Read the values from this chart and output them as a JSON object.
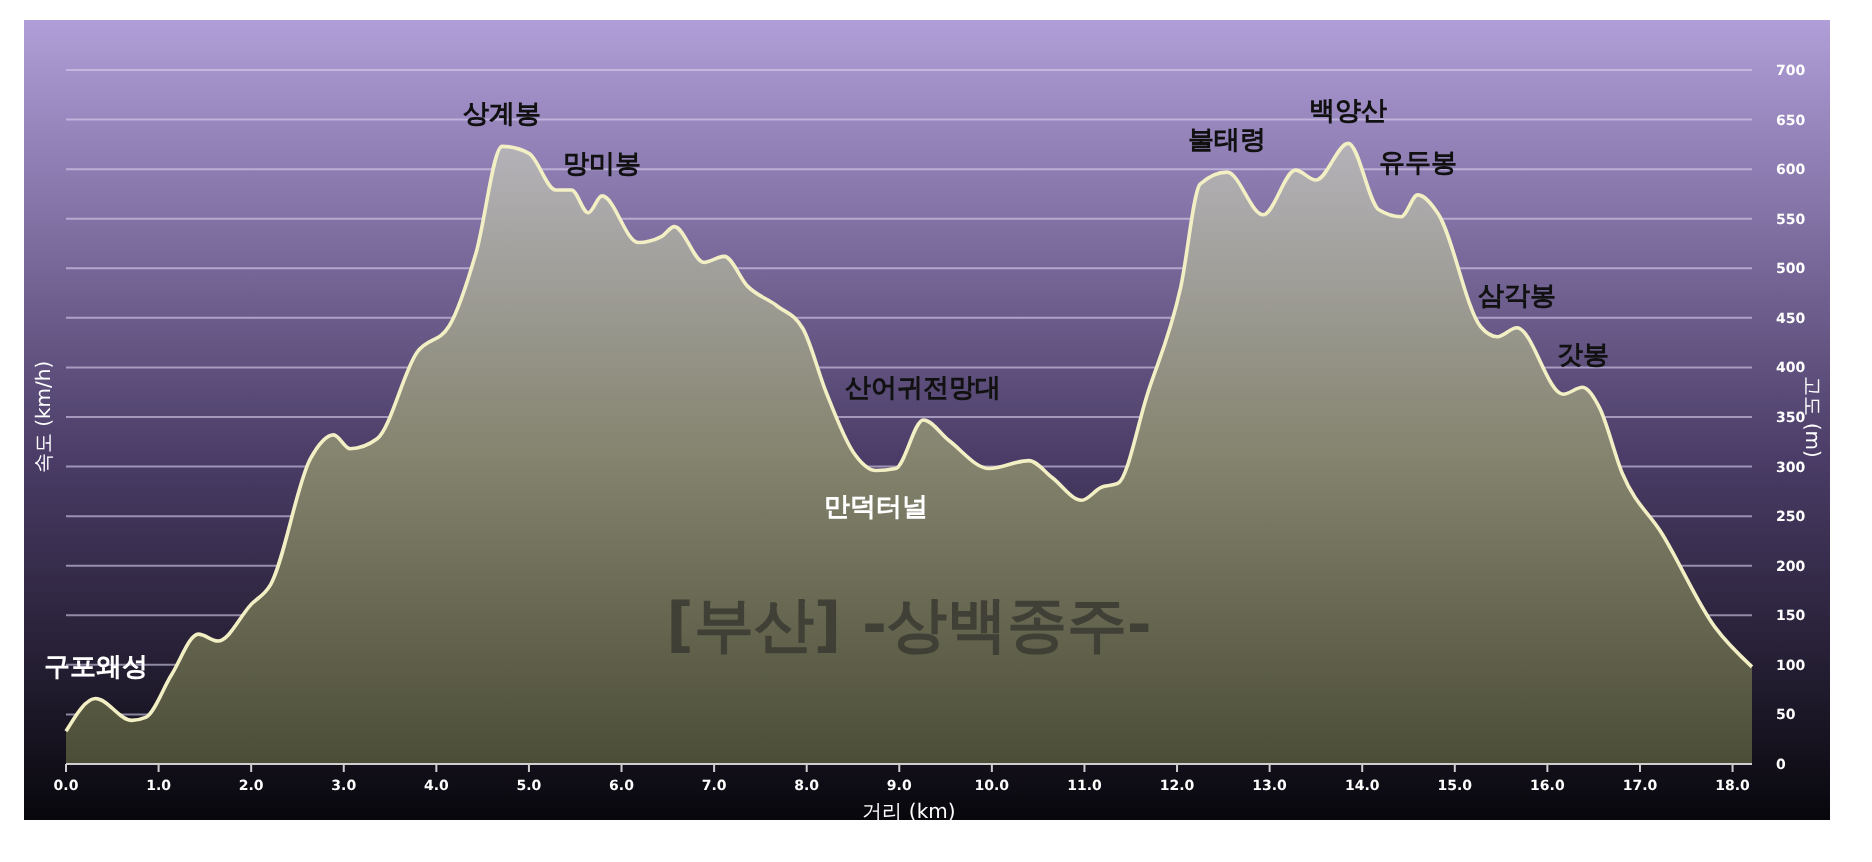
{
  "chart_data": {
    "type": "area",
    "title": "[부산] -상백종주-",
    "xlabel": "거리 (km)",
    "ylabel": "고도 (m)",
    "x": [
      0,
      0.32,
      0.71,
      0.86,
      1.14,
      1.43,
      1.64,
      2.0,
      2.21,
      2.64,
      2.89,
      3.07,
      3.36,
      3.79,
      4.14,
      4.43,
      4.71,
      5.0,
      5.29,
      5.46,
      5.64,
      5.79,
      6.18,
      6.43,
      6.57,
      6.89,
      7.11,
      7.36,
      7.68,
      7.96,
      8.21,
      8.5,
      8.75,
      8.96,
      9.26,
      9.54,
      9.97,
      10.4,
      10.65,
      10.97,
      11.18,
      11.36,
      11.68,
      12.04,
      12.25,
      12.54,
      12.93,
      13.28,
      13.5,
      13.85,
      14.18,
      14.42,
      14.6,
      14.82,
      15.28,
      15.46,
      15.67,
      16.17,
      16.38,
      16.56,
      16.81,
      17.24,
      17.81,
      18.21
    ],
    "series": [
      {
        "color": "#f3efc4",
        "values": [
          33,
          66,
          44,
          47,
          90,
          131,
          124,
          161,
          181,
          308,
          332,
          318,
          328,
          415,
          442,
          516,
          623,
          616,
          579,
          579,
          556,
          573,
          526,
          532,
          542,
          506,
          512,
          482,
          462,
          439,
          375,
          315,
          296,
          298,
          347,
          326,
          298,
          306,
          289,
          266,
          279,
          283,
          373,
          481,
          585,
          597,
          554,
          599,
          589,
          626,
          559,
          552,
          574,
          555,
          441,
          431,
          440,
          373,
          380,
          360,
          293,
          232,
          138,
          98
        ]
      }
    ],
    "xlim": [
      0,
      18.21
    ],
    "xticks": [
      {
        "value": 0,
        "label": "0.0"
      },
      {
        "value": 1,
        "label": "1.0"
      },
      {
        "value": 2,
        "label": "2.0"
      },
      {
        "value": 3,
        "label": "3.0"
      },
      {
        "value": 4,
        "label": "4.0"
      },
      {
        "value": 5,
        "label": "5.0"
      },
      {
        "value": 6,
        "label": "6.0"
      },
      {
        "value": 7,
        "label": "7.0"
      },
      {
        "value": 8,
        "label": "8.0"
      },
      {
        "value": 9,
        "label": "9.0"
      },
      {
        "value": 10,
        "label": "10.0"
      },
      {
        "value": 11,
        "label": "11.0"
      },
      {
        "value": 12,
        "label": "12.0"
      },
      {
        "value": 13,
        "label": "13.0"
      },
      {
        "value": 14,
        "label": "14.0"
      },
      {
        "value": 15,
        "label": "15.0"
      },
      {
        "value": 16,
        "label": "16.0"
      },
      {
        "value": 17,
        "label": "17.0"
      },
      {
        "value": 18,
        "label": "18.0"
      }
    ],
    "ylim": [
      0,
      700
    ],
    "yticks": [
      0,
      50,
      100,
      150,
      200,
      250,
      300,
      350,
      400,
      450,
      500,
      550,
      600,
      650,
      700
    ],
    "grid": "y",
    "annotations": [
      "속도 (km/h)",
      {
        "text": "구포왜성",
        "x": 0.32,
        "y": 66
      },
      {
        "text": "상계봉",
        "x": 4.71,
        "y": 623
      },
      {
        "text": "망미봉",
        "x": 5.79,
        "y": 573
      },
      {
        "text": "만덕터널",
        "x": 8.75,
        "y": 296
      },
      {
        "text": "산어귀전망대",
        "x": 9.26,
        "y": 347
      },
      {
        "text": "불태령",
        "x": 12.54,
        "y": 597
      },
      {
        "text": "백양산",
        "x": 13.85,
        "y": 626
      },
      {
        "text": "유두봉",
        "x": 14.6,
        "y": 574
      },
      {
        "text": "삼각봉",
        "x": 15.67,
        "y": 440
      },
      {
        "text": "갓봉",
        "x": 16.38,
        "y": 380
      }
    ]
  }
}
